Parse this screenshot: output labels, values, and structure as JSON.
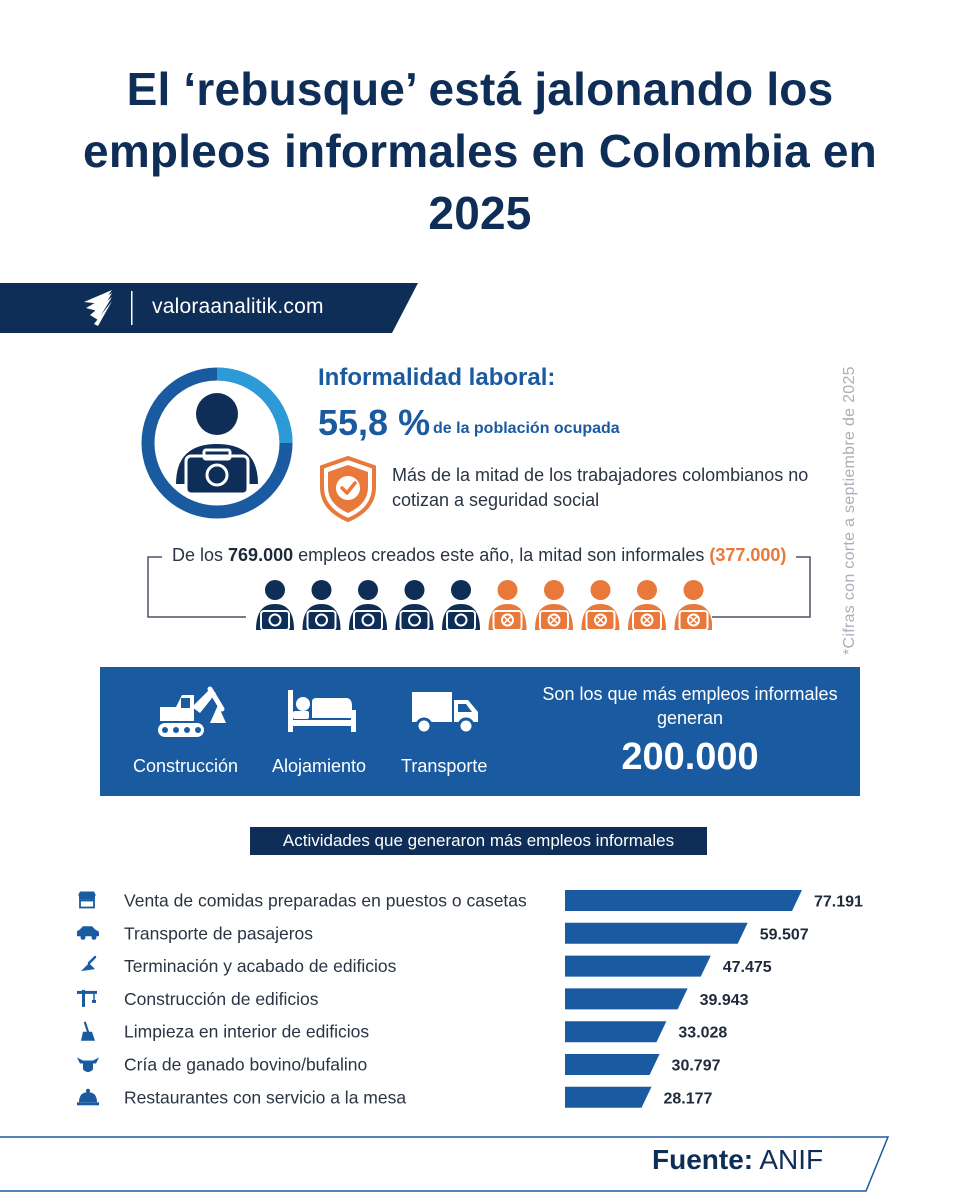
{
  "title": "El ‘rebusque’ está jalonando los empleos informales en Colombia en 2025",
  "brand": {
    "site": "valoraanalitik.com",
    "logo_icon": "valora-logo-icon"
  },
  "side_note": "*Cifras con corte a septiembre de 2025",
  "informality": {
    "title": "Informalidad laboral:",
    "percent": "55,8 %",
    "percent_label": "de la población ocupada",
    "description": "Más de la mitad de los trabajadores colombianos no cotizan a seguridad social",
    "description_icon": "shield-check-icon"
  },
  "jobs": {
    "prefix": "De los ",
    "total": "769.000",
    "middle": " empleos creados este año, la mitad son informales ",
    "informal": "(377.000)",
    "formal_icons": 5,
    "informal_icons": 5,
    "colors": {
      "formal": "#0e2d57",
      "informal": "#e8793a"
    }
  },
  "sectors": {
    "items": [
      {
        "label": "Construcción",
        "icon": "excavator-icon"
      },
      {
        "label": "Alojamiento",
        "icon": "bed-icon"
      },
      {
        "label": "Transporte",
        "icon": "truck-icon"
      }
    ],
    "text": "Son los que más empleos informales generan",
    "number": "200.000"
  },
  "colors": {
    "navy": "#0e2d57",
    "blue": "#1a5aa0",
    "orange": "#e8793a"
  },
  "chart_data": {
    "type": "bar",
    "orientation": "horizontal",
    "title": "Actividades que generaron más empleos informales",
    "categories": [
      "Venta de comidas preparadas en puestos o casetas",
      "Transporte de pasajeros",
      "Terminación y acabado de edificios",
      "Construcción de edificios",
      "Limpieza en interior de edificios",
      "Cría de ganado bovino/bufalino",
      "Restaurantes con servicio a la mesa"
    ],
    "icons": [
      "food-stall-icon",
      "car-icon",
      "trowel-icon",
      "crane-icon",
      "broom-icon",
      "cow-icon",
      "serving-dish-icon"
    ],
    "values": [
      77191,
      59507,
      47475,
      39943,
      33028,
      30797,
      28177
    ],
    "value_labels": [
      "77.191",
      "59.507",
      "47.475",
      "39.943",
      "33.028",
      "30.797",
      "28.177"
    ],
    "color": "#1a5aa0"
  },
  "footer": {
    "label": "Fuente:",
    "source": "ANIF"
  }
}
